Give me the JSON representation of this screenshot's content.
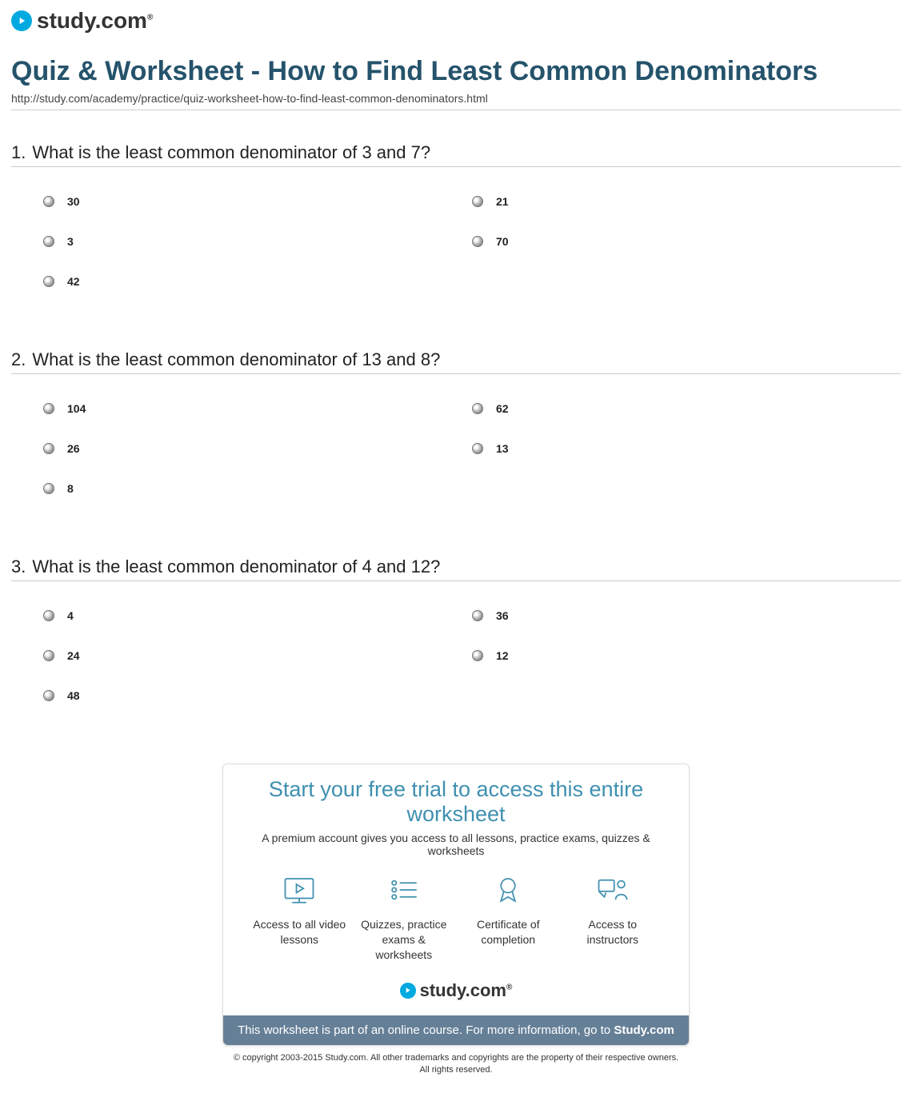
{
  "brand": {
    "name": "study.com",
    "tm": "®",
    "accent_color": "#00a9e0",
    "title_color": "#25536b"
  },
  "page": {
    "title": "Quiz & Worksheet - How to Find Least Common Denominators",
    "url": "http://study.com/academy/practice/quiz-worksheet-how-to-find-least-common-denominators.html"
  },
  "questions": [
    {
      "number": "1.",
      "text": "What is the least common denominator of 3 and 7?",
      "options": [
        {
          "pos": "c0r0",
          "label": "30"
        },
        {
          "pos": "c1r0",
          "label": "21"
        },
        {
          "pos": "c0r1",
          "label": "3"
        },
        {
          "pos": "c1r1",
          "label": "70"
        },
        {
          "pos": "c0r2",
          "label": "42"
        }
      ]
    },
    {
      "number": "2.",
      "text": "What is the least common denominator of 13 and 8?",
      "options": [
        {
          "pos": "c0r0",
          "label": "104"
        },
        {
          "pos": "c1r0",
          "label": "62"
        },
        {
          "pos": "c0r1",
          "label": "26"
        },
        {
          "pos": "c1r1",
          "label": "13"
        },
        {
          "pos": "c0r2",
          "label": "8"
        }
      ]
    },
    {
      "number": "3.",
      "text": "What is the least common denominator of 4 and 12?",
      "options": [
        {
          "pos": "c0r0",
          "label": "4"
        },
        {
          "pos": "c1r0",
          "label": "36"
        },
        {
          "pos": "c0r1",
          "label": "24"
        },
        {
          "pos": "c1r1",
          "label": "12"
        },
        {
          "pos": "c0r2",
          "label": "48"
        }
      ]
    }
  ],
  "promo": {
    "title": "Start your free trial to access this entire worksheet",
    "subtitle": "A premium account gives you access to all lessons, practice exams, quizzes & worksheets",
    "features": [
      {
        "icon": "video",
        "text": "Access to all video lessons"
      },
      {
        "icon": "list",
        "text": "Quizzes, practice exams & worksheets"
      },
      {
        "icon": "badge",
        "text": "Certificate of completion"
      },
      {
        "icon": "instructor",
        "text": "Access to instructors"
      }
    ],
    "bar_prefix": "This worksheet is part of an online course. For more information, go to ",
    "bar_link": "Study.com",
    "bar_bg": "#657f97",
    "feature_color": "#3f90b0"
  },
  "copyright": {
    "line1": "© copyright 2003-2015 Study.com. All other trademarks and copyrights are the property of their respective owners.",
    "line2": "All rights reserved."
  }
}
